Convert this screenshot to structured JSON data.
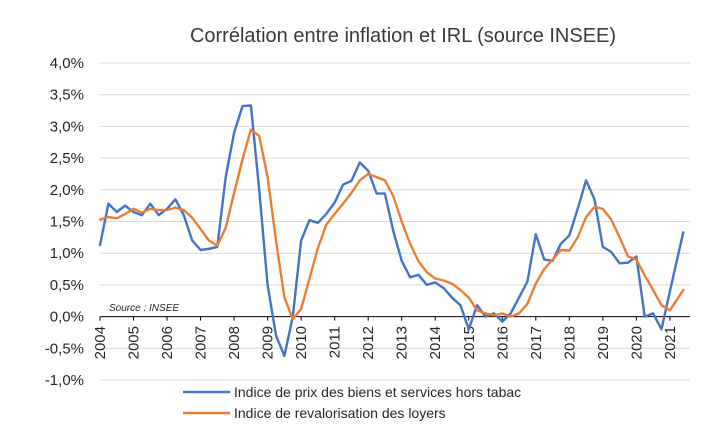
{
  "colors": {
    "series1": "#4472c4",
    "series2": "#ed7d31"
  },
  "chart_data": {
    "type": "line",
    "title": "Corrélation entre inflation et IRL (source INSEE)",
    "source_note": "Source : INSEE",
    "xlabel": "",
    "ylabel": "",
    "grid": true,
    "legend_position": "bottom",
    "xlim": [
      2004,
      2021.6
    ],
    "ylim": [
      -1.0,
      4.0
    ],
    "y_ticks": [
      -1.0,
      -0.5,
      0.0,
      0.5,
      1.0,
      1.5,
      2.0,
      2.5,
      3.0,
      3.5,
      4.0
    ],
    "y_tick_labels": [
      "-1,0%",
      "-0,5%",
      "0,0%",
      "0,5%",
      "1,0%",
      "1,5%",
      "2,0%",
      "2,5%",
      "3,0%",
      "3,5%",
      "4,0%"
    ],
    "x_ticks": [
      2004,
      2005,
      2006,
      2007,
      2008,
      2009,
      2010,
      2011,
      2012,
      2013,
      2014,
      2015,
      2016,
      2017,
      2018,
      2019,
      2020,
      2021
    ],
    "x_tick_labels": [
      "2004",
      "2005",
      "2006",
      "2007",
      "2008",
      "2009",
      "2010",
      "2011",
      "2012",
      "2013",
      "2014",
      "2015",
      "2016",
      "2017",
      "2018",
      "2019",
      "2020",
      "2021"
    ],
    "series": [
      {
        "name": "Indice de prix des biens et services hors tabac",
        "color_key": "series1",
        "points": [
          [
            2004.0,
            1.13
          ],
          [
            2004.25,
            1.78
          ],
          [
            2004.5,
            1.65
          ],
          [
            2004.75,
            1.75
          ],
          [
            2005.0,
            1.65
          ],
          [
            2005.25,
            1.6
          ],
          [
            2005.5,
            1.78
          ],
          [
            2005.75,
            1.6
          ],
          [
            2006.0,
            1.7
          ],
          [
            2006.25,
            1.85
          ],
          [
            2006.5,
            1.6
          ],
          [
            2006.75,
            1.2
          ],
          [
            2007.0,
            1.05
          ],
          [
            2007.25,
            1.07
          ],
          [
            2007.5,
            1.1
          ],
          [
            2007.75,
            2.2
          ],
          [
            2008.0,
            2.9
          ],
          [
            2008.25,
            3.32
          ],
          [
            2008.5,
            3.33
          ],
          [
            2008.75,
            2.0
          ],
          [
            2009.0,
            0.5
          ],
          [
            2009.25,
            -0.3
          ],
          [
            2009.5,
            -0.62
          ],
          [
            2009.75,
            0.0
          ],
          [
            2010.0,
            1.2
          ],
          [
            2010.25,
            1.52
          ],
          [
            2010.5,
            1.48
          ],
          [
            2010.75,
            1.62
          ],
          [
            2011.0,
            1.8
          ],
          [
            2011.25,
            2.08
          ],
          [
            2011.5,
            2.14
          ],
          [
            2011.75,
            2.43
          ],
          [
            2012.0,
            2.3
          ],
          [
            2012.25,
            1.94
          ],
          [
            2012.5,
            1.94
          ],
          [
            2012.75,
            1.35
          ],
          [
            2013.0,
            0.88
          ],
          [
            2013.25,
            0.62
          ],
          [
            2013.5,
            0.66
          ],
          [
            2013.75,
            0.5
          ],
          [
            2014.0,
            0.54
          ],
          [
            2014.25,
            0.45
          ],
          [
            2014.5,
            0.3
          ],
          [
            2014.75,
            0.18
          ],
          [
            2015.0,
            -0.2
          ],
          [
            2015.25,
            0.18
          ],
          [
            2015.5,
            0.0
          ],
          [
            2015.75,
            0.05
          ],
          [
            2016.0,
            -0.08
          ],
          [
            2016.25,
            0.05
          ],
          [
            2016.5,
            0.3
          ],
          [
            2016.75,
            0.55
          ],
          [
            2017.0,
            1.3
          ],
          [
            2017.25,
            0.9
          ],
          [
            2017.5,
            0.88
          ],
          [
            2017.75,
            1.15
          ],
          [
            2018.0,
            1.28
          ],
          [
            2018.25,
            1.7
          ],
          [
            2018.5,
            2.15
          ],
          [
            2018.75,
            1.85
          ],
          [
            2019.0,
            1.1
          ],
          [
            2019.25,
            1.02
          ],
          [
            2019.5,
            0.84
          ],
          [
            2019.75,
            0.85
          ],
          [
            2020.0,
            0.95
          ],
          [
            2020.25,
            0.0
          ],
          [
            2020.5,
            0.05
          ],
          [
            2020.75,
            -0.2
          ],
          [
            2021.0,
            0.4
          ],
          [
            2021.4,
            1.33
          ]
        ]
      },
      {
        "name": "Indice de revalorisation des loyers",
        "color_key": "series2",
        "points": [
          [
            2004.0,
            1.53
          ],
          [
            2004.25,
            1.57
          ],
          [
            2004.5,
            1.55
          ],
          [
            2004.75,
            1.62
          ],
          [
            2005.0,
            1.7
          ],
          [
            2005.25,
            1.64
          ],
          [
            2005.5,
            1.7
          ],
          [
            2005.75,
            1.68
          ],
          [
            2006.0,
            1.68
          ],
          [
            2006.25,
            1.72
          ],
          [
            2006.5,
            1.68
          ],
          [
            2006.75,
            1.56
          ],
          [
            2007.0,
            1.38
          ],
          [
            2007.25,
            1.2
          ],
          [
            2007.5,
            1.12
          ],
          [
            2007.75,
            1.4
          ],
          [
            2008.0,
            1.95
          ],
          [
            2008.25,
            2.48
          ],
          [
            2008.5,
            2.95
          ],
          [
            2008.75,
            2.85
          ],
          [
            2009.0,
            2.2
          ],
          [
            2009.25,
            1.2
          ],
          [
            2009.5,
            0.3
          ],
          [
            2009.75,
            -0.04
          ],
          [
            2010.0,
            0.12
          ],
          [
            2010.25,
            0.6
          ],
          [
            2010.5,
            1.08
          ],
          [
            2010.75,
            1.45
          ],
          [
            2011.0,
            1.62
          ],
          [
            2011.25,
            1.78
          ],
          [
            2011.5,
            1.95
          ],
          [
            2011.75,
            2.15
          ],
          [
            2012.0,
            2.25
          ],
          [
            2012.25,
            2.2
          ],
          [
            2012.5,
            2.15
          ],
          [
            2012.75,
            1.9
          ],
          [
            2013.0,
            1.5
          ],
          [
            2013.25,
            1.15
          ],
          [
            2013.5,
            0.87
          ],
          [
            2013.75,
            0.7
          ],
          [
            2014.0,
            0.6
          ],
          [
            2014.25,
            0.57
          ],
          [
            2014.5,
            0.52
          ],
          [
            2014.75,
            0.42
          ],
          [
            2015.0,
            0.3
          ],
          [
            2015.25,
            0.1
          ],
          [
            2015.5,
            0.05
          ],
          [
            2015.75,
            0.02
          ],
          [
            2016.0,
            0.05
          ],
          [
            2016.25,
            0.0
          ],
          [
            2016.5,
            0.05
          ],
          [
            2016.75,
            0.2
          ],
          [
            2017.0,
            0.52
          ],
          [
            2017.25,
            0.75
          ],
          [
            2017.5,
            0.9
          ],
          [
            2017.75,
            1.05
          ],
          [
            2018.0,
            1.04
          ],
          [
            2018.25,
            1.25
          ],
          [
            2018.5,
            1.57
          ],
          [
            2018.75,
            1.73
          ],
          [
            2019.0,
            1.7
          ],
          [
            2019.25,
            1.53
          ],
          [
            2019.5,
            1.25
          ],
          [
            2019.75,
            0.95
          ],
          [
            2020.0,
            0.9
          ],
          [
            2020.25,
            0.65
          ],
          [
            2020.5,
            0.42
          ],
          [
            2020.75,
            0.18
          ],
          [
            2021.0,
            0.1
          ],
          [
            2021.4,
            0.42
          ]
        ]
      }
    ]
  }
}
